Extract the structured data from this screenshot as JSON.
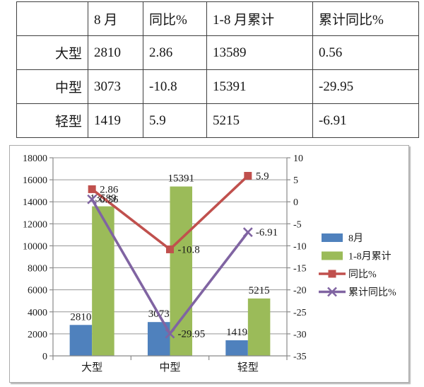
{
  "table": {
    "columns": [
      "",
      "8 月",
      "同比%",
      "1-8 月累计",
      "累计同比%"
    ],
    "rows": [
      {
        "label": "大型",
        "values": [
          "2810",
          "2.86",
          "13589",
          "0.56"
        ]
      },
      {
        "label": "中型",
        "values": [
          "3073",
          "-10.8",
          "15391",
          "-29.95"
        ]
      },
      {
        "label": "轻型",
        "values": [
          "1419",
          "5.9",
          "5215",
          "-6.91"
        ]
      }
    ]
  },
  "chart_data": {
    "type": "combo",
    "categories": [
      "大型",
      "中型",
      "轻型"
    ],
    "series": [
      {
        "name": "8月",
        "type": "bar",
        "axis": "left",
        "color": "#4F81BD",
        "values": [
          2810,
          3073,
          1419
        ],
        "data_labels": true
      },
      {
        "name": "1-8月累计",
        "type": "bar",
        "axis": "left",
        "color": "#9BBB59",
        "values": [
          13589,
          15391,
          5215
        ],
        "data_labels": true
      },
      {
        "name": "同比%",
        "type": "line",
        "axis": "right",
        "color": "#C0504D",
        "marker": "square",
        "values": [
          2.86,
          -10.8,
          5.9
        ],
        "data_labels": true
      },
      {
        "name": "累计同比%",
        "type": "line",
        "axis": "right",
        "color": "#8064A2",
        "marker": "x",
        "values": [
          0.56,
          -29.95,
          -6.91
        ],
        "data_labels": true
      }
    ],
    "left_axis": {
      "min": 0,
      "max": 18000,
      "step": 2000
    },
    "right_axis": {
      "min": -35,
      "max": 10,
      "step": 5
    },
    "legend": {
      "position": "right",
      "entries": [
        "8月",
        "1-8月累计",
        "同比%",
        "累计同比%"
      ]
    },
    "grid": true,
    "title": "",
    "xlabel": "",
    "ylabel": ""
  },
  "colors": {
    "grid": "#969696",
    "axis": "#8a8a8a",
    "text": "#1a1a1a"
  }
}
